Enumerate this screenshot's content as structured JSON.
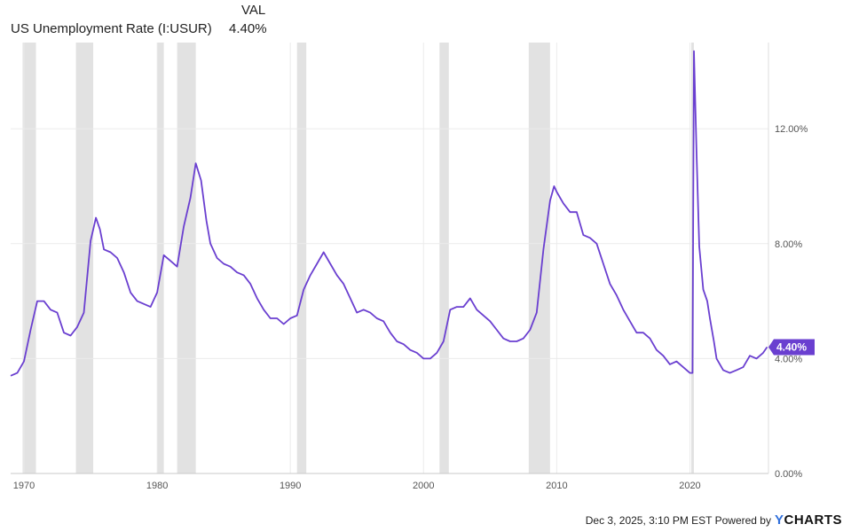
{
  "legend": {
    "value_header": "VAL",
    "series_name": "US Unemployment Rate (I:USUR)",
    "series_value": "4.40%"
  },
  "footer": {
    "timestamp": "Dec 3, 2025, 3:10 PM EST Powered by",
    "brand_y": "Y",
    "brand_rest": "CHARTS"
  },
  "colors": {
    "line": "#6a3fd0",
    "recession": "#e2e2e2",
    "grid": "#ebebeb",
    "badge": "#6a3fd0"
  },
  "chart_data": {
    "type": "line",
    "title": "",
    "xlabel": "",
    "ylabel": "",
    "xlim": [
      1969,
      2025.9
    ],
    "ylim": [
      0,
      15
    ],
    "x_ticks": [
      1970,
      1980,
      1990,
      2000,
      2010,
      2020
    ],
    "x_tick_labels": [
      "1970",
      "1980",
      "1990",
      "2000",
      "2010",
      "2020"
    ],
    "y_ticks": [
      0,
      4,
      8,
      12
    ],
    "y_tick_labels": [
      "0.00%",
      "4.00%",
      "8.00%",
      "12.00%"
    ],
    "grid": true,
    "last_value_label": "4.40%",
    "recessions": [
      [
        1969.9,
        1970.9
      ],
      [
        1973.9,
        1975.2
      ],
      [
        1980.0,
        1980.5
      ],
      [
        1981.5,
        1982.9
      ],
      [
        1990.5,
        1991.2
      ],
      [
        2001.2,
        2001.9
      ],
      [
        2007.9,
        2009.5
      ],
      [
        2020.1,
        2020.3
      ]
    ],
    "series": [
      {
        "name": "US Unemployment Rate (I:USUR)",
        "x": [
          1969.0,
          1969.5,
          1970.0,
          1970.5,
          1971.0,
          1971.5,
          1972.0,
          1972.5,
          1973.0,
          1973.5,
          1974.0,
          1974.5,
          1975.0,
          1975.4,
          1975.7,
          1976.0,
          1976.5,
          1977.0,
          1977.5,
          1978.0,
          1978.5,
          1979.0,
          1979.5,
          1980.0,
          1980.5,
          1981.0,
          1981.5,
          1982.0,
          1982.5,
          1982.9,
          1983.3,
          1983.7,
          1984.0,
          1984.5,
          1985.0,
          1985.5,
          1986.0,
          1986.5,
          1987.0,
          1987.5,
          1988.0,
          1988.5,
          1989.0,
          1989.5,
          1990.0,
          1990.5,
          1991.0,
          1991.5,
          1992.0,
          1992.5,
          1993.0,
          1993.5,
          1994.0,
          1994.5,
          1995.0,
          1995.5,
          1996.0,
          1996.5,
          1997.0,
          1997.5,
          1998.0,
          1998.5,
          1999.0,
          1999.5,
          2000.0,
          2000.5,
          2001.0,
          2001.5,
          2002.0,
          2002.5,
          2003.0,
          2003.5,
          2004.0,
          2004.5,
          2005.0,
          2005.5,
          2006.0,
          2006.5,
          2007.0,
          2007.5,
          2008.0,
          2008.5,
          2009.0,
          2009.5,
          2009.8,
          2010.0,
          2010.5,
          2011.0,
          2011.5,
          2012.0,
          2012.5,
          2013.0,
          2013.5,
          2014.0,
          2014.5,
          2015.0,
          2015.5,
          2016.0,
          2016.5,
          2017.0,
          2017.5,
          2018.0,
          2018.5,
          2019.0,
          2019.5,
          2020.0,
          2020.2,
          2020.3,
          2020.5,
          2020.7,
          2021.0,
          2021.3,
          2021.5,
          2021.8,
          2022.0,
          2022.5,
          2023.0,
          2023.5,
          2024.0,
          2024.5,
          2025.0,
          2025.5,
          2025.8
        ],
        "values": [
          3.4,
          3.5,
          3.9,
          5.0,
          6.0,
          6.0,
          5.7,
          5.6,
          4.9,
          4.8,
          5.1,
          5.6,
          8.1,
          8.9,
          8.5,
          7.8,
          7.7,
          7.5,
          7.0,
          6.3,
          6.0,
          5.9,
          5.8,
          6.3,
          7.6,
          7.4,
          7.2,
          8.6,
          9.6,
          10.8,
          10.2,
          8.8,
          8.0,
          7.5,
          7.3,
          7.2,
          7.0,
          6.9,
          6.6,
          6.1,
          5.7,
          5.4,
          5.4,
          5.2,
          5.4,
          5.5,
          6.4,
          6.9,
          7.3,
          7.7,
          7.3,
          6.9,
          6.6,
          6.1,
          5.6,
          5.7,
          5.6,
          5.4,
          5.3,
          4.9,
          4.6,
          4.5,
          4.3,
          4.2,
          4.0,
          4.0,
          4.2,
          4.6,
          5.7,
          5.8,
          5.8,
          6.1,
          5.7,
          5.5,
          5.3,
          5.0,
          4.7,
          4.6,
          4.6,
          4.7,
          5.0,
          5.6,
          7.8,
          9.5,
          10.0,
          9.8,
          9.4,
          9.1,
          9.1,
          8.3,
          8.2,
          8.0,
          7.3,
          6.6,
          6.2,
          5.7,
          5.3,
          4.9,
          4.9,
          4.7,
          4.3,
          4.1,
          3.8,
          3.9,
          3.7,
          3.5,
          3.5,
          14.7,
          11.1,
          7.9,
          6.4,
          6.0,
          5.4,
          4.6,
          4.0,
          3.6,
          3.5,
          3.6,
          3.7,
          4.1,
          4.0,
          4.2,
          4.4
        ]
      }
    ]
  }
}
